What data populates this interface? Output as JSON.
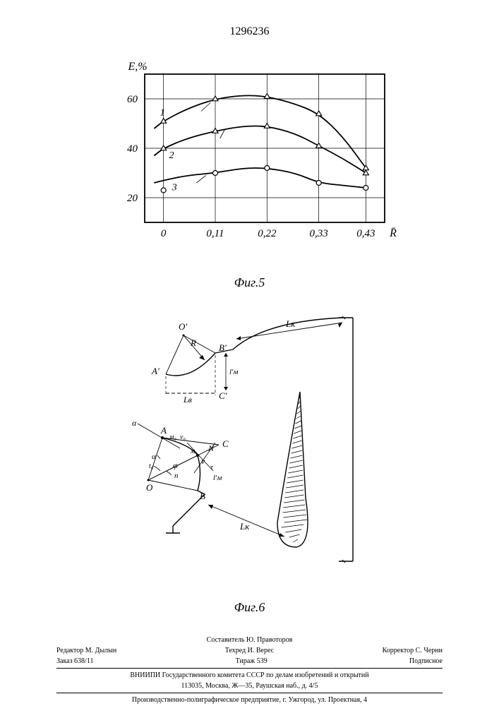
{
  "patent_number": "1296236",
  "chart": {
    "type": "line",
    "y_axis_label": "Е,%",
    "x_axis_label": "R̄",
    "caption": "Фиг.5",
    "xlim": [
      -0.04,
      0.47
    ],
    "ylim": [
      10,
      70
    ],
    "x_ticks": [
      0,
      0.11,
      0.22,
      0.33,
      0.43
    ],
    "x_tick_labels": [
      "0",
      "0,11",
      "0,22",
      "0,33",
      "0,43"
    ],
    "y_ticks": [
      20,
      40,
      60
    ],
    "y_tick_labels": [
      "20",
      "40",
      "60"
    ],
    "grid_color": "#000000",
    "background_color": "#ffffff",
    "axis_stroke_width": 1.8,
    "grid_stroke_width": 0.7,
    "curve_stroke_width": 1.8,
    "series": [
      {
        "label": "1",
        "marker": "triangle",
        "marker_size": 8,
        "points_x": [
          0,
          0.11,
          0.22,
          0.33,
          0.43
        ],
        "points_y": [
          51,
          60,
          61,
          54,
          32
        ],
        "curve_x": [
          -0.02,
          0,
          0.05,
          0.11,
          0.17,
          0.22,
          0.28,
          0.33,
          0.38,
          0.43
        ],
        "curve_y": [
          48,
          51,
          56,
          60,
          61.5,
          61,
          58,
          54,
          45,
          32
        ]
      },
      {
        "label": "2",
        "marker": "triangle",
        "marker_size": 8,
        "points_x": [
          0,
          0.11,
          0.22,
          0.33,
          0.43
        ],
        "points_y": [
          40,
          47,
          49,
          41,
          30
        ],
        "curve_x": [
          -0.02,
          0,
          0.05,
          0.11,
          0.17,
          0.22,
          0.28,
          0.33,
          0.38,
          0.43
        ],
        "curve_y": [
          37,
          40,
          44,
          47,
          49,
          49,
          46,
          41,
          36,
          30
        ]
      },
      {
        "label": "3",
        "marker": "circle",
        "marker_size": 7,
        "points_x": [
          0,
          0.11,
          0.22,
          0.33,
          0.43
        ],
        "points_y": [
          23,
          30,
          32,
          26,
          24
        ],
        "curve_x": [
          -0.02,
          0,
          0.05,
          0.11,
          0.17,
          0.22,
          0.28,
          0.33,
          0.38,
          0.43
        ],
        "curve_y": [
          26,
          27,
          29,
          30,
          32,
          32,
          30,
          26,
          25,
          24
        ]
      }
    ]
  },
  "diagram": {
    "caption": "Фиг.6",
    "labels": {
      "O_prime": "О'",
      "A_prime": "А'",
      "B_prime": "В'",
      "C_prime": "С'",
      "R": "R",
      "L_b": "Lв",
      "L_k1": "Lк",
      "L_k2": "Lк",
      "l_m_prime": "l'м",
      "alpha1": "α",
      "alpha2": "α",
      "A": "А",
      "B": "В",
      "C": "С",
      "O": "О",
      "V": "ν",
      "M0": "м₀",
      "V0": "ν₀",
      "N": "N",
      "M": "м",
      "phi": "φ",
      "n": "n",
      "tau": "τ",
      "l_m": "l'м"
    }
  },
  "credits": {
    "compiler": "Составитель Ю. Правоторов",
    "editor": "Редактор М. Дылын",
    "techred": "Техред И. Верес",
    "corrector": "Корректор С. Черни",
    "order": "Заказ 638/11",
    "tirage": "Тираж 539",
    "subscription": "Подписное",
    "org": "ВНИИПИ Государственного комитета СССР по делам изобретений и открытий",
    "address": "113035, Москва, Ж—35, Раушская наб., д. 4/5",
    "printing": "Производственно-полиграфическое предприятие, г. Ужгород, ул. Проектная, 4"
  }
}
